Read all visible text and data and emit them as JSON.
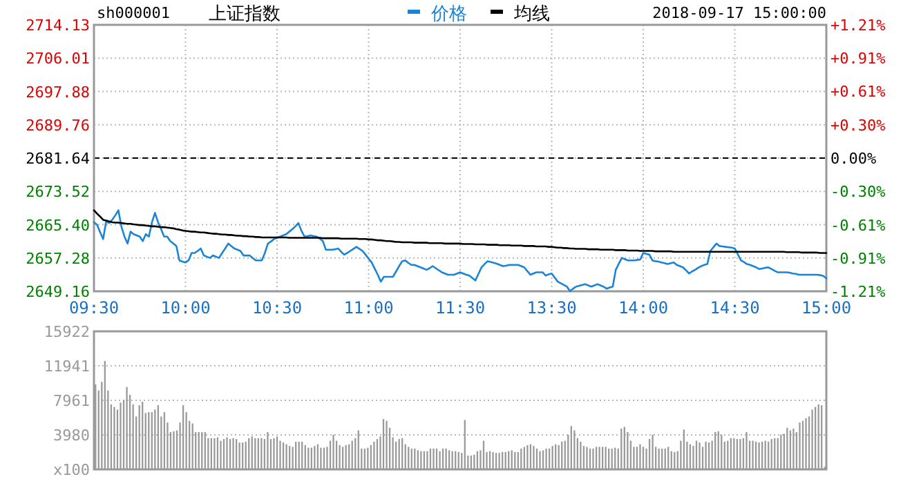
{
  "chart_data": [
    {
      "type": "line",
      "title": "上证指数",
      "subtitle": "sh000001",
      "annotations": [
        "2018-09-17 15:00:00"
      ],
      "legend": "top",
      "grid": true,
      "categories": [
        "09:30",
        null,
        null,
        null,
        null,
        null,
        null,
        null,
        null,
        null,
        null,
        null,
        null,
        null,
        null,
        null,
        null,
        null,
        null,
        null,
        null,
        null,
        null,
        null,
        null,
        null,
        null,
        null,
        null,
        null,
        "10:00",
        null,
        null,
        null,
        null,
        null,
        null,
        null,
        null,
        null,
        null,
        null,
        null,
        null,
        null,
        null,
        null,
        null,
        null,
        null,
        null,
        null,
        null,
        null,
        null,
        null,
        null,
        null,
        null,
        null,
        "10:30",
        null,
        null,
        null,
        null,
        null,
        null,
        null,
        null,
        null,
        null,
        null,
        null,
        null,
        null,
        null,
        null,
        null,
        null,
        null,
        null,
        null,
        null,
        null,
        null,
        null,
        null,
        null,
        null,
        null,
        "11:00",
        null,
        null,
        null,
        null,
        null,
        null,
        null,
        null,
        null,
        null,
        null,
        null,
        null,
        null,
        null,
        null,
        null,
        null,
        null,
        null,
        null,
        null,
        null,
        null,
        null,
        null,
        null,
        null,
        null,
        "11:30",
        null,
        null,
        null,
        null,
        null,
        null,
        null,
        null,
        null,
        null,
        null,
        null,
        null,
        null,
        null,
        null,
        null,
        null,
        null,
        null,
        null,
        null,
        null,
        null,
        null,
        null,
        null,
        null,
        null,
        "13:30",
        null,
        null,
        null,
        null,
        null,
        null,
        null,
        null,
        null,
        null,
        null,
        null,
        null,
        null,
        null,
        null,
        null,
        null,
        null,
        null,
        null,
        null,
        null,
        null,
        null,
        null,
        null,
        null,
        null,
        "14:00",
        null,
        null,
        null,
        null,
        null,
        null,
        null,
        null,
        null,
        null,
        null,
        null,
        null,
        null,
        null,
        null,
        null,
        null,
        null,
        null,
        null,
        null,
        null,
        null,
        null,
        null,
        null,
        null,
        null,
        "14:30",
        null,
        null,
        null,
        null,
        null,
        null,
        null,
        null,
        null,
        null,
        null,
        null,
        null,
        null,
        null,
        null,
        null,
        null,
        null,
        null,
        null,
        null,
        null,
        null,
        null,
        null,
        null,
        null,
        null,
        "15:00"
      ],
      "ylim": [
        2649.16,
        2714.13
      ],
      "yticks": [
        2649.16,
        2657.28,
        {
          "value": 2665.4,
          "label": "2665.40"
        },
        2673.52,
        2681.64,
        2689.76,
        2697.88,
        2706.01,
        2714.13
      ],
      "y2lim": [
        -1.21,
        1.21
      ],
      "y2ticks": [
        {
          "value": -1.21,
          "label": "-1.21%"
        },
        {
          "value": -0.91,
          "label": "-0.91%"
        },
        {
          "value": -0.61,
          "label": "-0.61%"
        },
        {
          "value": -0.3,
          "label": "-0.30%"
        },
        {
          "value": 0,
          "label": "0.00%"
        },
        {
          "value": 0.3,
          "label": "+0.30%"
        },
        {
          "value": 0.61,
          "label": "+0.61%"
        },
        {
          "value": 0.91,
          "label": "+0.91%"
        },
        {
          "value": 1.21,
          "label": "+1.21%"
        }
      ],
      "ref_lines": [
        {
          "axis": "y",
          "value": 2681.64,
          "color": "#000000",
          "line_style": "dashed"
        }
      ],
      "series": [
        {
          "name": "价格",
          "color": "#1a85d6",
          "values": [
            2666.0,
            2665.4,
            2663.6,
            2661.9,
            2666.2,
            2665.8,
            2666.6,
            2667.7,
            2668.9,
            2664.9,
            2662.5,
            2660.8,
            2663.7,
            2663.1,
            2662.8,
            2662.5,
            2661.4,
            2663.1,
            2662.5,
            2666.0,
            2668.3,
            2666.0,
            2664.3,
            2662.5,
            2662.5,
            2661.4,
            2660.8,
            2660.2,
            2656.7,
            2656.4,
            2656.2,
            2656.7,
            2658.5,
            2658.5,
            2659.0,
            2659.6,
            2657.9,
            2657.6,
            2657.3,
            2657.9,
            2657.6,
            2657.3,
            2658.5,
            2659.6,
            2660.8,
            2660.2,
            2659.6,
            2659.3,
            2659.0,
            2657.9,
            2657.9,
            2657.9,
            2657.3,
            2656.7,
            2656.7,
            2656.7,
            2658.5,
            2660.8,
            2661.3,
            2661.9,
            2662.2,
            2662.5,
            2662.8,
            2663.1,
            2663.7,
            2664.3,
            2665.0,
            2665.8,
            2663.9,
            2662.5,
            2662.6,
            2662.8,
            2662.6,
            2662.5,
            2662.0,
            2661.4,
            2659.3,
            2659.3,
            2659.3,
            2659.4,
            2659.6,
            2658.8,
            2658.1,
            2658.5,
            2659.0,
            2659.5,
            2660.0,
            2659.5,
            2659.0,
            2658.1,
            2657.1,
            2656.2,
            2654.7,
            2653.2,
            2651.5,
            2652.7,
            2652.7,
            2652.7,
            2652.7,
            2654.0,
            2655.3,
            2656.5,
            2656.7,
            2656.1,
            2655.6,
            2655.6,
            2655.3,
            2655.0,
            2654.7,
            2654.4,
            2654.8,
            2655.3,
            2654.8,
            2654.3,
            2653.8,
            2653.5,
            2653.2,
            2653.2,
            2653.2,
            2653.5,
            2653.8,
            2653.5,
            2653.2,
            2653.0,
            2652.4,
            2651.8,
            2653.4,
            2655.0,
            2655.8,
            2656.5,
            2656.3,
            2656.1,
            2655.9,
            2655.6,
            2655.3,
            2655.4,
            2655.6,
            2655.6,
            2655.6,
            2655.6,
            2655.3,
            2655.0,
            2654.1,
            2653.2,
            2653.5,
            2653.8,
            2653.8,
            2653.8,
            2653.0,
            2653.3,
            2653.5,
            2652.5,
            2651.5,
            2651.1,
            2650.7,
            2650.3,
            2649.2,
            2649.8,
            2650.3,
            2650.5,
            2650.7,
            2650.9,
            2650.6,
            2650.3,
            2650.6,
            2650.9,
            2650.6,
            2650.3,
            2649.8,
            2650.1,
            2650.3,
            2654.4,
            2655.9,
            2657.3,
            2657.0,
            2656.7,
            2656.7,
            2656.7,
            2656.8,
            2656.9,
            2658.5,
            2658.3,
            2658.1,
            2656.7,
            2656.5,
            2656.4,
            2656.2,
            2656.0,
            2655.8,
            2656.0,
            2656.2,
            2655.6,
            2655.3,
            2655.0,
            2654.3,
            2653.5,
            2654.0,
            2654.4,
            2654.9,
            2655.3,
            2655.6,
            2655.8,
            2659.0,
            2659.9,
            2660.8,
            2660.2,
            2660.1,
            2660.0,
            2659.9,
            2659.8,
            2659.6,
            2658.2,
            2656.7,
            2656.3,
            2655.8,
            2655.6,
            2655.3,
            2655.0,
            2654.6,
            2654.7,
            2654.9,
            2655.0,
            2654.6,
            2654.2,
            2653.8,
            2653.8,
            2653.8,
            2653.8,
            2653.7,
            2653.5,
            2653.4,
            2653.2,
            2653.2,
            2653.2,
            2653.2,
            2653.2,
            2653.2,
            2653.2,
            2653.1,
            2652.9,
            2652.3
          ]
        },
        {
          "name": "均线",
          "color": "#000000",
          "values": [
            2668.9,
            2668.1,
            2667.4,
            2666.6,
            2666.4,
            2666.2,
            2666.0,
            2665.9,
            2665.9,
            2665.8,
            2665.7,
            2665.6,
            2665.6,
            2665.5,
            2665.4,
            2665.3,
            2665.3,
            2665.2,
            2665.1,
            2665.0,
            2665.0,
            2664.9,
            2664.8,
            2664.8,
            2664.7,
            2664.6,
            2664.5,
            2664.3,
            2664.2,
            2664.0,
            2663.9,
            2663.8,
            2663.7,
            2663.7,
            2663.6,
            2663.5,
            2663.5,
            2663.4,
            2663.3,
            2663.2,
            2663.2,
            2663.1,
            2663.0,
            2663.0,
            2662.9,
            2662.9,
            2662.8,
            2662.7,
            2662.7,
            2662.6,
            2662.6,
            2662.5,
            2662.5,
            2662.4,
            2662.4,
            2662.3,
            2662.3,
            2662.3,
            2662.3,
            2662.3,
            2662.3,
            2662.3,
            2662.3,
            2662.3,
            2662.2,
            2662.2,
            2662.2,
            2662.2,
            2662.2,
            2662.2,
            2662.2,
            2662.2,
            2662.2,
            2662.2,
            2662.2,
            2662.1,
            2662.1,
            2662.1,
            2662.1,
            2662.1,
            2662.1,
            2662.0,
            2662.0,
            2662.0,
            2662.0,
            2662.0,
            2662.0,
            2661.9,
            2661.9,
            2661.9,
            2661.8,
            2661.8,
            2661.7,
            2661.6,
            2661.6,
            2661.5,
            2661.4,
            2661.4,
            2661.3,
            2661.2,
            2661.2,
            2661.1,
            2661.1,
            2661.1,
            2661.1,
            2661.0,
            2661.0,
            2661.0,
            2661.0,
            2661.0,
            2660.9,
            2660.9,
            2660.9,
            2660.9,
            2660.9,
            2660.8,
            2660.8,
            2660.8,
            2660.8,
            2660.8,
            2660.8,
            2660.7,
            2660.7,
            2660.7,
            2660.7,
            2660.6,
            2660.6,
            2660.6,
            2660.6,
            2660.5,
            2660.5,
            2660.5,
            2660.5,
            2660.4,
            2660.4,
            2660.4,
            2660.4,
            2660.3,
            2660.3,
            2660.3,
            2660.3,
            2660.2,
            2660.2,
            2660.2,
            2660.2,
            2660.1,
            2660.1,
            2660.1,
            2660.1,
            2660.0,
            2660.0,
            2659.9,
            2659.8,
            2659.8,
            2659.7,
            2659.7,
            2659.6,
            2659.6,
            2659.5,
            2659.5,
            2659.5,
            2659.5,
            2659.4,
            2659.4,
            2659.4,
            2659.4,
            2659.3,
            2659.3,
            2659.3,
            2659.3,
            2659.3,
            2659.2,
            2659.2,
            2659.2,
            2659.2,
            2659.1,
            2659.1,
            2659.1,
            2659.1,
            2659.0,
            2659.0,
            2659.0,
            2659.0,
            2659.0,
            2658.9,
            2658.9,
            2658.9,
            2658.9,
            2658.9,
            2658.9,
            2658.8,
            2658.8,
            2658.8,
            2658.8,
            2658.8,
            2658.8,
            2658.8,
            2658.8,
            2658.8,
            2658.8,
            2658.8,
            2658.8,
            2658.8,
            2658.8,
            2658.8,
            2658.8,
            2658.8,
            2658.8,
            2658.8,
            2658.8,
            2658.8,
            2658.8,
            2658.8,
            2658.8,
            2658.8,
            2658.8,
            2658.8,
            2658.8,
            2658.8,
            2658.8,
            2658.8,
            2658.8,
            2658.8,
            2658.8,
            2658.8,
            2658.8,
            2658.8,
            2658.7,
            2658.7,
            2658.7,
            2658.7,
            2658.7,
            2658.6,
            2658.6,
            2658.6,
            2658.6,
            2658.6,
            2658.6,
            2658.5,
            2658.5,
            2658.5
          ]
        }
      ]
    },
    {
      "type": "bar",
      "grid": "y",
      "tick_labels": "y",
      "color": "#999999",
      "ylim": [
        0,
        15922
      ],
      "yticks": [
        {
          "value": 0,
          "label": "x100"
        },
        3980,
        7961,
        11941,
        15922
      ],
      "categories": [
        null,
        null,
        null,
        null,
        null,
        null,
        null,
        null,
        null,
        null,
        null,
        null,
        null,
        null,
        null,
        null,
        null,
        null,
        null,
        null,
        null,
        null,
        null,
        null,
        null,
        null,
        null,
        null,
        null,
        null,
        null,
        null,
        null,
        null,
        null,
        null,
        null,
        null,
        null,
        null,
        null,
        null,
        null,
        null,
        null,
        null,
        null,
        null,
        null,
        null,
        null,
        null,
        null,
        null,
        null,
        null,
        null,
        null,
        null,
        null,
        null,
        null,
        null,
        null,
        null,
        null,
        null,
        null,
        null,
        null,
        null,
        null,
        null,
        null,
        null,
        null,
        null,
        null,
        null,
        null,
        null,
        null,
        null,
        null,
        null,
        null,
        null,
        null,
        null,
        null,
        null,
        null,
        null,
        null,
        null,
        null,
        null,
        null,
        null,
        null,
        null,
        null,
        null,
        null,
        null,
        null,
        null,
        null,
        null,
        null,
        null,
        null,
        null,
        null,
        null,
        null,
        null,
        null,
        null,
        null,
        null,
        null,
        null,
        null,
        null,
        null,
        null,
        null,
        null,
        null,
        null,
        null,
        null,
        null,
        null,
        null,
        null,
        null,
        null,
        null,
        null,
        null,
        null,
        null,
        null,
        null,
        null,
        null,
        null,
        null,
        null,
        null,
        null,
        null,
        null,
        null,
        null,
        null,
        null,
        null,
        null,
        null,
        null,
        null,
        null,
        null,
        null,
        null,
        null,
        null,
        null,
        null,
        null,
        null,
        null,
        null,
        null,
        null,
        null,
        null,
        null,
        null,
        null,
        null,
        null,
        null,
        null,
        null,
        null,
        null,
        null,
        null,
        null,
        null,
        null,
        null,
        null,
        null,
        null,
        null,
        null,
        null,
        null,
        null,
        null,
        null,
        null,
        null,
        null,
        null,
        null,
        null,
        null,
        null,
        null,
        null,
        null,
        null,
        null,
        null,
        null,
        null,
        null,
        null,
        null,
        null,
        null,
        null,
        null,
        null,
        null,
        null,
        null,
        null
      ],
      "values": [
        9800,
        9100,
        10100,
        12500,
        9100,
        7500,
        7200,
        6900,
        7700,
        8000,
        9500,
        8600,
        7500,
        6100,
        7400,
        7800,
        6500,
        6600,
        6600,
        6900,
        7400,
        6100,
        6600,
        5400,
        4300,
        4400,
        4500,
        5400,
        7400,
        6600,
        5600,
        5300,
        4300,
        4300,
        4300,
        4300,
        3600,
        3600,
        3600,
        3700,
        3300,
        3500,
        3700,
        3500,
        3600,
        3500,
        3100,
        3100,
        3200,
        3600,
        3800,
        3600,
        3600,
        3600,
        3500,
        4300,
        3500,
        3600,
        3800,
        3300,
        3100,
        2900,
        2700,
        2600,
        3200,
        3200,
        3200,
        2800,
        2500,
        2500,
        2700,
        2900,
        2500,
        2500,
        2600,
        3300,
        4000,
        3300,
        2800,
        2600,
        2800,
        2900,
        3300,
        3600,
        4500,
        2400,
        2400,
        2500,
        2800,
        3200,
        3500,
        3800,
        5800,
        5600,
        4800,
        3700,
        3200,
        3500,
        3600,
        2900,
        2600,
        2400,
        2400,
        2200,
        2100,
        2100,
        2100,
        2400,
        2400,
        2400,
        2100,
        2400,
        2400,
        2200,
        2100,
        2100,
        2000,
        1900,
        5700,
        1600,
        1600,
        1700,
        2100,
        2200,
        3300,
        2000,
        2100,
        2000,
        1900,
        1900,
        2000,
        2000,
        2100,
        2200,
        2000,
        2000,
        2400,
        2600,
        2800,
        2900,
        2700,
        2400,
        2100,
        2200,
        2400,
        2400,
        2700,
        2900,
        2800,
        3200,
        3300,
        4000,
        5000,
        4500,
        3600,
        3200,
        2700,
        2600,
        2400,
        2400,
        2600,
        2600,
        2600,
        2600,
        2400,
        2400,
        2500,
        2400,
        4700,
        4900,
        4300,
        3300,
        2600,
        2600,
        2900,
        2600,
        2400,
        3500,
        4000,
        2600,
        2400,
        2400,
        2400,
        2600,
        2100,
        2000,
        2100,
        3300,
        4600,
        3200,
        2900,
        2700,
        3300,
        3100,
        2600,
        3200,
        3100,
        3300,
        4300,
        4400,
        4000,
        3200,
        3300,
        3600,
        3600,
        3500,
        3500,
        3600,
        4300,
        3300,
        3300,
        3200,
        3100,
        3200,
        3300,
        3200,
        3500,
        3600,
        3600,
        4000,
        4100,
        4800,
        4500,
        4700,
        4300,
        5400,
        5600,
        5900,
        6100,
        6900,
        7200,
        7500,
        7400,
        300
      ]
    }
  ]
}
